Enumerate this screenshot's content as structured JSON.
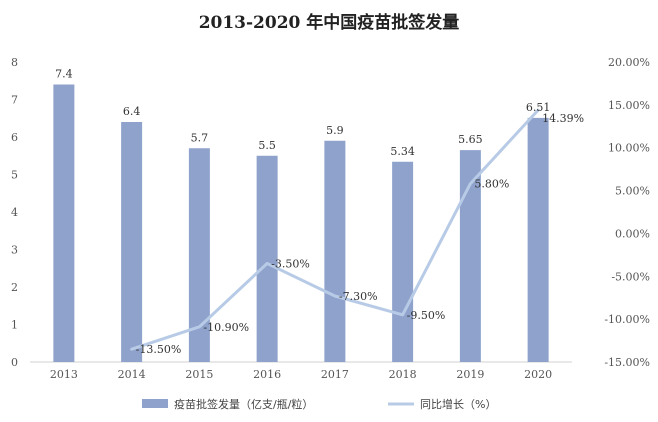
{
  "chart_data": {
    "type": "bar",
    "title": "2013-2020 年中国疫苗批签发量",
    "categories": [
      "2013",
      "2014",
      "2015",
      "2016",
      "2017",
      "2018",
      "2019",
      "2020"
    ],
    "series": [
      {
        "name": "疫苗批签发量（亿支/瓶/粒）",
        "type": "bar",
        "axis": "left",
        "values": [
          7.4,
          6.4,
          5.7,
          5.5,
          5.9,
          5.34,
          5.65,
          6.51
        ],
        "labels": [
          "7.4",
          "6.4",
          "5.7",
          "5.5",
          "5.9",
          "5.34",
          "5.65",
          "6.51"
        ],
        "color": "#8fa2cc"
      },
      {
        "name": "同比增长（%）",
        "type": "line",
        "axis": "right",
        "values": [
          null,
          -13.5,
          -10.9,
          -3.5,
          -7.3,
          -9.5,
          5.8,
          14.39
        ],
        "labels": [
          "",
          "-13.50%",
          "-10.90%",
          "-3.50%",
          "-7.30%",
          "-9.50%",
          "5.80%",
          "14.39%"
        ],
        "color": "#b8cbe6"
      }
    ],
    "y_left": {
      "min": 0,
      "max": 8,
      "ticks": [
        "0",
        "1",
        "2",
        "3",
        "4",
        "5",
        "6",
        "7",
        "8"
      ]
    },
    "y_right": {
      "min": -15,
      "max": 20,
      "ticks": [
        "-15.00%",
        "-10.00%",
        "-5.00%",
        "0.00%",
        "5.00%",
        "10.00%",
        "15.00%",
        "20.00%"
      ]
    },
    "grid": false,
    "legend": "bottom"
  }
}
